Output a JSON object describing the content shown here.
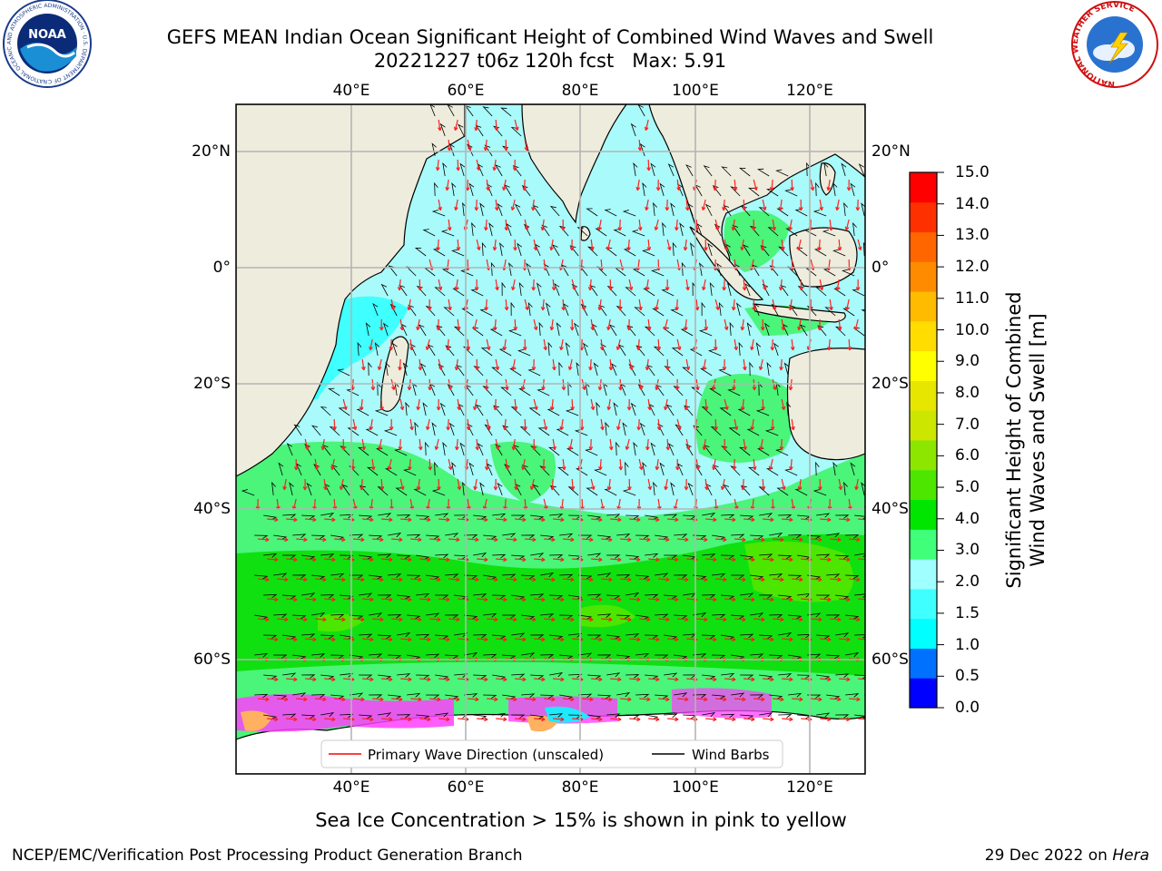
{
  "title": {
    "line1": "GEFS MEAN Indian Ocean Significant Height of Combined Wind Waves and Swell",
    "line2": "20221227 t06z 120h fcst   Max: 5.91"
  },
  "logos": {
    "noaa_text": "NOAA",
    "noaa_ring": "NATIONAL OCEANIC AND ATMOSPHERIC ADMINISTRATION · U.S. DEPARTMENT OF COMMERCE ·",
    "nws_ring": "NATIONAL WEATHER SERVICE"
  },
  "map": {
    "top_ticks": [
      "40°E",
      "60°E",
      "80°E",
      "100°E",
      "120°E"
    ],
    "bottom_ticks": [
      "40°E",
      "60°E",
      "80°E",
      "100°E",
      "120°E"
    ],
    "lat_ticks": [
      "20°N",
      "0°",
      "20°S",
      "40°S",
      "60°S"
    ],
    "colors": {
      "land": "#eeecdc",
      "ice_region": "#ffffff",
      "grid": "#b4b4b4",
      "wave_arrow": "#ff2020",
      "wind_barb": "#000000"
    }
  },
  "legend": {
    "primary_wave": "Primary Wave Direction (unscaled)",
    "wind_barbs": "Wind Barbs"
  },
  "colorbar": {
    "label_line1": "Significant Height of Combined",
    "label_line2": "Wind Waves and Swell [m]",
    "ticks": [
      "15.0",
      "14.0",
      "13.0",
      "12.0",
      "11.0",
      "10.0",
      "9.0",
      "8.0",
      "7.0",
      "6.0",
      "5.0",
      "4.0",
      "3.0",
      "2.0",
      "1.5",
      "1.0",
      "0.5",
      "0.0"
    ],
    "colors_bottom_to_top": [
      "#0000ff",
      "#0070ff",
      "#00ffff",
      "#40ffff",
      "#a0ffff",
      "#40ff78",
      "#00e600",
      "#4ce600",
      "#8ce600",
      "#cce600",
      "#e6e600",
      "#ffff00",
      "#ffdd00",
      "#ffbb00",
      "#ff8c00",
      "#ff6600",
      "#ff3000",
      "#ff0000"
    ]
  },
  "caption": "Sea Ice Concentration > 15% is shown in pink to yellow",
  "footer": {
    "left": "NCEP/EMC/Verification Post Processing Product Generation Branch",
    "right_date": "29 Dec 2022 on ",
    "right_host": "Hera"
  }
}
